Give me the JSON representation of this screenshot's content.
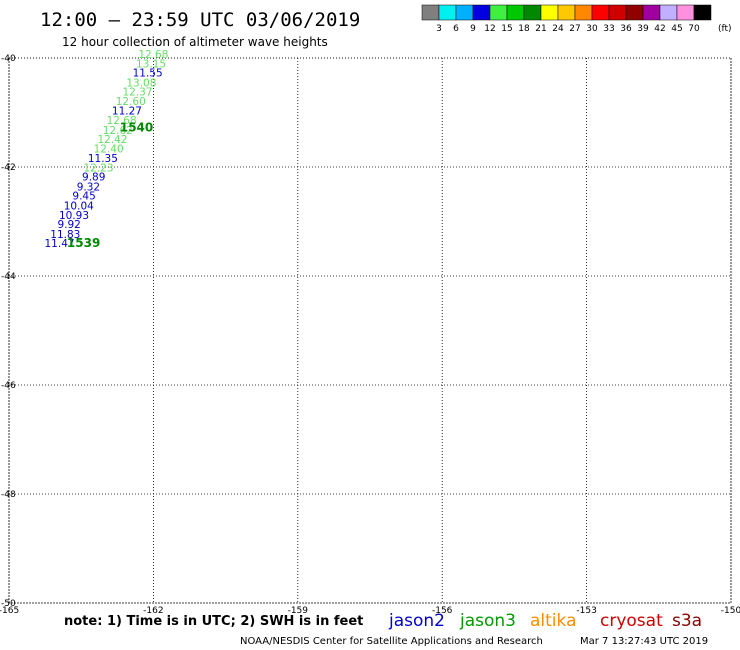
{
  "title": "12:00 – 23:59 UTC 03/06/2019",
  "subtitle": "12 hour collection of altimeter wave heights",
  "note": "note:  1) Time is in UTC;  2) SWH is in feet",
  "credit": "NOAA/NESDIS Center for Satellite Applications and Research",
  "timestamp": "Mar  7 13:27:43 UTC 2019",
  "colorbar": {
    "colors": [
      "#7f7f7f",
      "#00f0f0",
      "#00b0ff",
      "#0000e0",
      "#40f040",
      "#00c800",
      "#008800",
      "#ffff00",
      "#ffc800",
      "#ff8800",
      "#ff0000",
      "#d00000",
      "#900000",
      "#a000a0",
      "#c0b0ff",
      "#ff90e0",
      "#000000"
    ],
    "ticks": [
      "3",
      "6",
      "9",
      "12",
      "15",
      "18",
      "21",
      "24",
      "27",
      "30",
      "33",
      "36",
      "39",
      "42",
      "45",
      "70"
    ],
    "unit": "(ft)"
  },
  "satellites": [
    {
      "name": "jason2",
      "color": "#0000cc"
    },
    {
      "name": "jason3",
      "color": "#009900"
    },
    {
      "name": "altika",
      "color": "#ff8c00"
    },
    {
      "name": "cryosat",
      "color": "#cc0000"
    },
    {
      "name": "s3a",
      "color": "#880000"
    }
  ],
  "chart_data": {
    "type": "scatter",
    "title": "12:00 – 23:59 UTC 03/06/2019",
    "subtitle": "12 hour collection of altimeter wave heights",
    "xlim": [
      -165,
      -150
    ],
    "ylim": [
      -50,
      -40
    ],
    "x_ticks": [
      {
        "value": -165,
        "label": "-165"
      },
      {
        "value": -162,
        "label": "-162"
      },
      {
        "value": -159,
        "label": "-159"
      },
      {
        "value": -156,
        "label": "-156"
      },
      {
        "value": -153,
        "label": "-153"
      },
      {
        "value": -150,
        "label": "-150"
      }
    ],
    "y_ticks": [
      {
        "value": -40,
        "label": "-40"
      },
      {
        "value": -42,
        "label": "-42"
      },
      {
        "value": -44,
        "label": "-44"
      },
      {
        "value": -46,
        "label": "-46"
      },
      {
        "value": -48,
        "label": "-48"
      },
      {
        "value": -50,
        "label": "-50"
      }
    ],
    "grid": true,
    "points": [
      {
        "lon": -162.0,
        "lat": -40.0,
        "label": "12.68",
        "color": "#66dd66"
      },
      {
        "lon": -162.05,
        "lat": -40.17,
        "label": "13.15",
        "color": "#66dd66"
      },
      {
        "lon": -162.12,
        "lat": -40.34,
        "label": "11.55",
        "color": "#0000cc"
      },
      {
        "lon": -162.25,
        "lat": -40.52,
        "label": "13.08",
        "color": "#66dd66"
      },
      {
        "lon": -162.33,
        "lat": -40.69,
        "label": "12.37",
        "color": "#66dd66"
      },
      {
        "lon": -162.47,
        "lat": -40.86,
        "label": "12.60",
        "color": "#66dd66"
      },
      {
        "lon": -162.55,
        "lat": -41.04,
        "label": "11.27",
        "color": "#0000cc"
      },
      {
        "lon": -162.66,
        "lat": -41.21,
        "label": "12.68",
        "color": "#66dd66"
      },
      {
        "lon": -162.74,
        "lat": -41.39,
        "label": "12.62",
        "color": "#66dd66"
      },
      {
        "lon": -162.85,
        "lat": -41.56,
        "label": "12.42",
        "color": "#66dd66"
      },
      {
        "lon": -162.93,
        "lat": -41.73,
        "label": "12.40",
        "color": "#66dd66"
      },
      {
        "lon": -163.05,
        "lat": -41.91,
        "label": "11.35",
        "color": "#0000cc"
      },
      {
        "lon": -163.14,
        "lat": -42.08,
        "label": "12.23",
        "color": "#66dd66"
      },
      {
        "lon": -163.24,
        "lat": -42.25,
        "label": "9.89",
        "color": "#0000cc"
      },
      {
        "lon": -163.35,
        "lat": -42.43,
        "label": "9.32",
        "color": "#0000cc"
      },
      {
        "lon": -163.44,
        "lat": -42.6,
        "label": "9.45",
        "color": "#0000cc"
      },
      {
        "lon": -163.55,
        "lat": -42.78,
        "label": "10.04",
        "color": "#0000cc"
      },
      {
        "lon": -163.65,
        "lat": -42.95,
        "label": "10.93",
        "color": "#0000cc"
      },
      {
        "lon": -163.75,
        "lat": -43.12,
        "label": "9.92",
        "color": "#0000cc"
      },
      {
        "lon": -163.83,
        "lat": -43.3,
        "label": "11.83",
        "color": "#0000cc"
      },
      {
        "lon": -163.95,
        "lat": -43.47,
        "label": "11.47",
        "color": "#0000cc"
      }
    ],
    "pass_labels": [
      {
        "lon": -162.35,
        "lat": -41.35,
        "label": "1540",
        "color": "#008800"
      },
      {
        "lon": -163.45,
        "lat": -43.47,
        "label": "1539",
        "color": "#008800"
      }
    ]
  }
}
